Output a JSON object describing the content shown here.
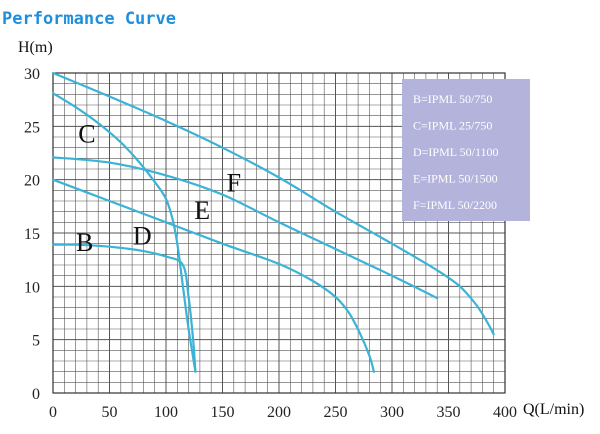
{
  "chart_data": {
    "type": "line",
    "title": "Performance Curve",
    "ylabel": "H(m)",
    "xlabel": "Q(L/min)",
    "xlim": [
      0,
      400
    ],
    "ylim": [
      0,
      30
    ],
    "x_ticks": [
      0,
      50,
      100,
      150,
      200,
      250,
      300,
      350,
      400
    ],
    "y_ticks": [
      0,
      5,
      10,
      15,
      20,
      25,
      30
    ],
    "grid": true,
    "legend_position": "top-right",
    "colors": {
      "curve": "#3bb3d6",
      "grid": "#555555",
      "legend_bg": "#b3b3dc",
      "title": "#1f8fdc"
    },
    "series": [
      {
        "name": "B",
        "legend": "B=IPML 50/750",
        "label_at": [
          28,
          13.3
        ],
        "points": [
          [
            0,
            13.9
          ],
          [
            20,
            13.9
          ],
          [
            40,
            13.8
          ],
          [
            60,
            13.6
          ],
          [
            80,
            13.3
          ],
          [
            100,
            12.8
          ],
          [
            115,
            12.0
          ],
          [
            120,
            9.0
          ],
          [
            124,
            5.0
          ],
          [
            126,
            2.0
          ]
        ]
      },
      {
        "name": "C",
        "legend": "C=IPML 25/750",
        "label_at": [
          30,
          23.5
        ],
        "points": [
          [
            0,
            28.1
          ],
          [
            20,
            26.8
          ],
          [
            40,
            25.3
          ],
          [
            60,
            23.5
          ],
          [
            75,
            21.8
          ],
          [
            90,
            19.8
          ],
          [
            100,
            18.2
          ],
          [
            106,
            16.2
          ],
          [
            110,
            14.0
          ],
          [
            115,
            10.0
          ],
          [
            120,
            6.0
          ],
          [
            126,
            2.0
          ]
        ]
      },
      {
        "name": "D",
        "legend": "D=IPML 50/1100",
        "label_at": [
          79,
          13.9
        ],
        "points": [
          [
            0,
            20.0
          ],
          [
            50,
            18.0
          ],
          [
            100,
            16.0
          ],
          [
            150,
            14.0
          ],
          [
            200,
            12.1
          ],
          [
            230,
            10.5
          ],
          [
            250,
            9.0
          ],
          [
            262,
            7.5
          ],
          [
            272,
            5.5
          ],
          [
            280,
            3.5
          ],
          [
            284,
            2.0
          ]
        ]
      },
      {
        "name": "E",
        "legend": "E=IPML 50/1500",
        "label_at": [
          132,
          16.3
        ],
        "points": [
          [
            0,
            22.1
          ],
          [
            50,
            21.6
          ],
          [
            100,
            20.4
          ],
          [
            150,
            18.6
          ],
          [
            200,
            16.0
          ],
          [
            250,
            13.5
          ],
          [
            300,
            11.0
          ],
          [
            340,
            8.9
          ]
        ]
      },
      {
        "name": "F",
        "legend": "F=IPML 50/2200",
        "label_at": [
          160,
          18.9
        ],
        "points": [
          [
            0,
            30.0
          ],
          [
            50,
            27.8
          ],
          [
            100,
            25.5
          ],
          [
            150,
            23.0
          ],
          [
            200,
            20.2
          ],
          [
            250,
            17.0
          ],
          [
            300,
            14.0
          ],
          [
            340,
            11.5
          ],
          [
            360,
            10.0
          ],
          [
            375,
            8.2
          ],
          [
            385,
            6.5
          ],
          [
            390,
            5.5
          ]
        ]
      }
    ]
  }
}
